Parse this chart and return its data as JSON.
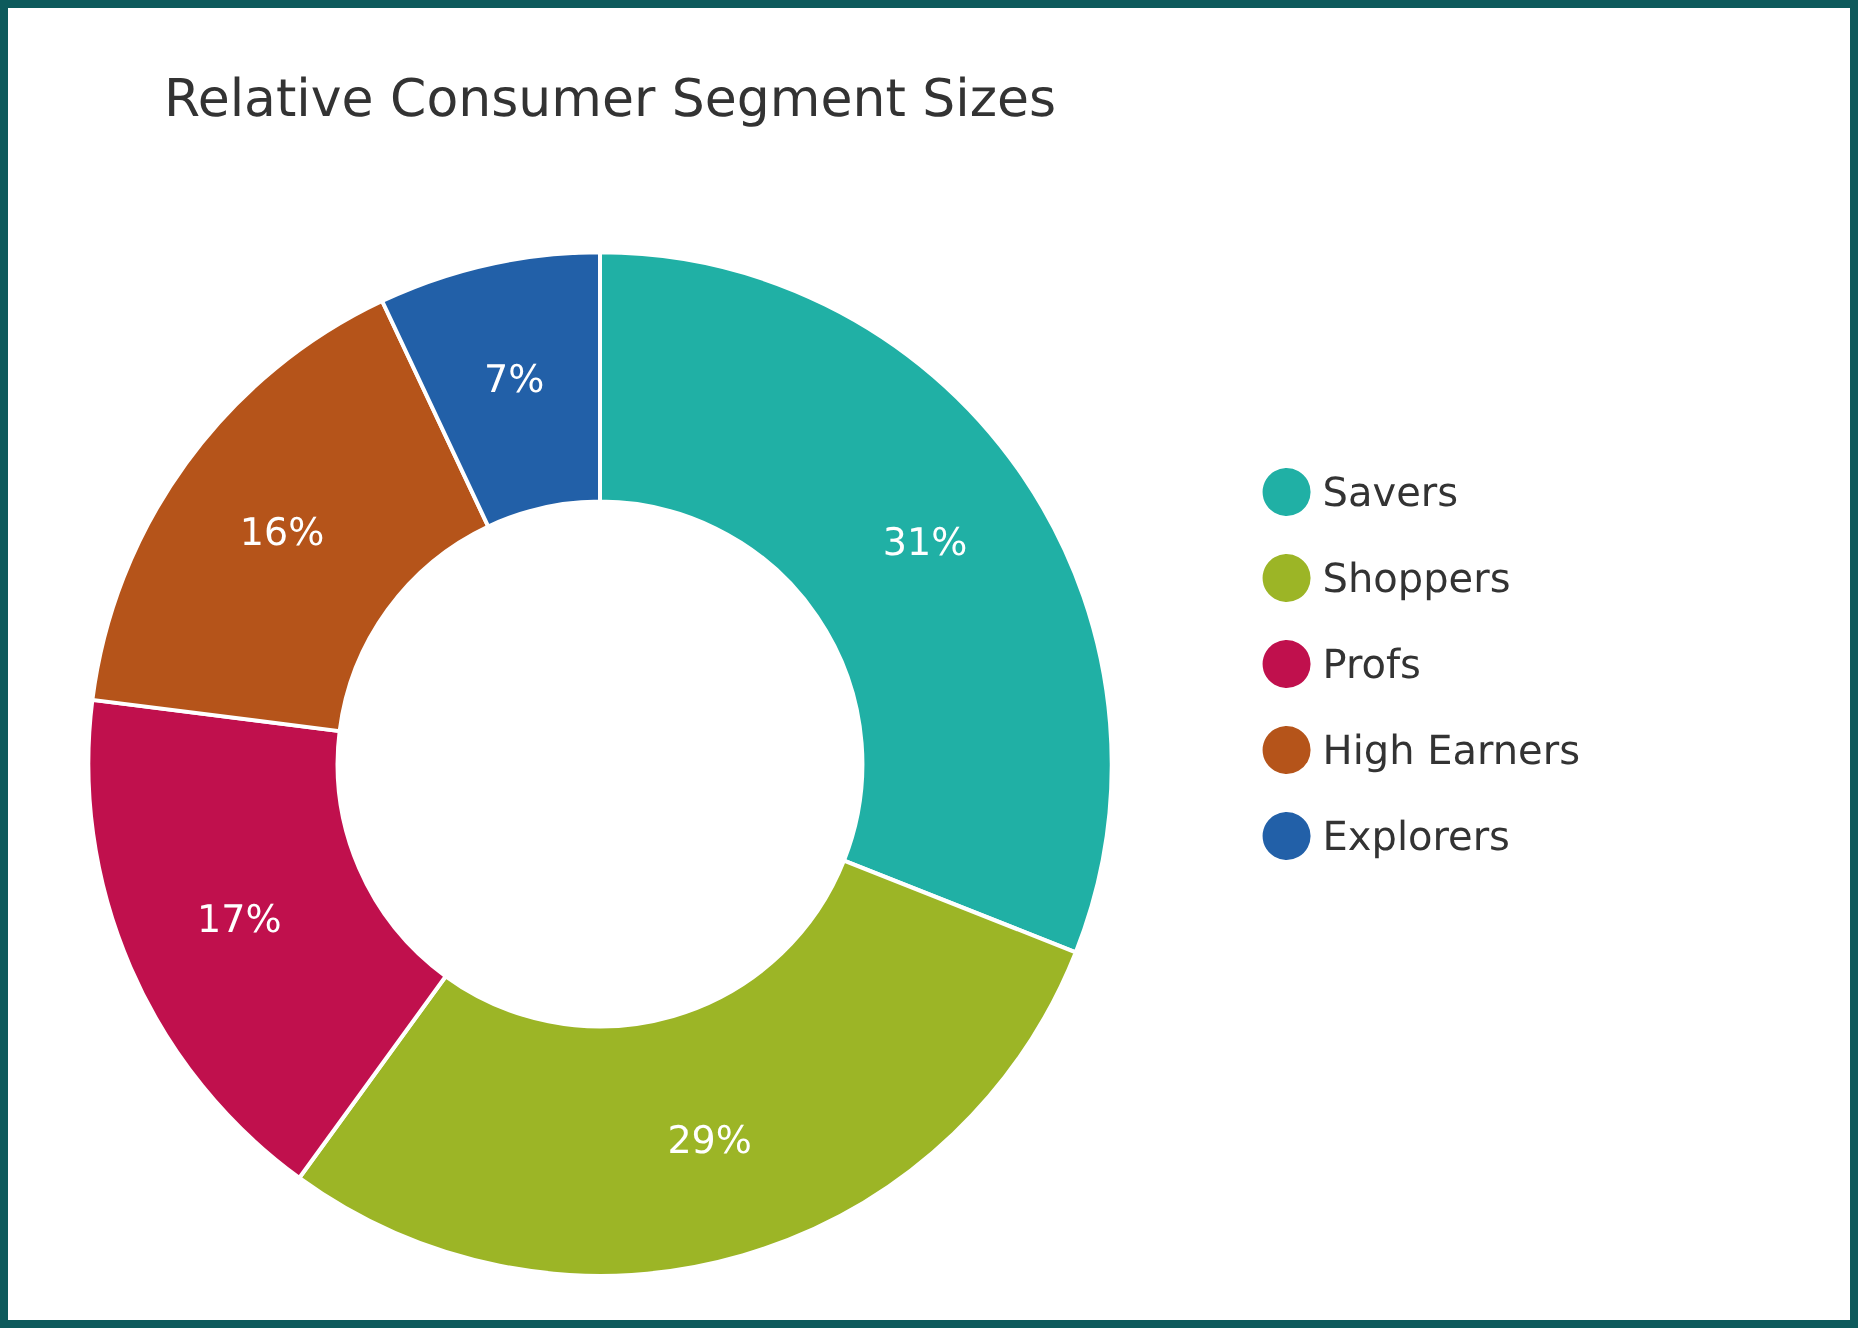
{
  "chart_data": {
    "type": "donut",
    "title": "Relative Consumer Segment Sizes",
    "categories": [
      "Savers",
      "Shoppers",
      "Profs",
      "High Earners",
      "Explorers"
    ],
    "values": [
      31,
      29,
      17,
      16,
      7
    ],
    "colors": [
      "#20b0a5",
      "#9cb526",
      "#c0104d",
      "#b5541a",
      "#2260a8"
    ],
    "value_labels": [
      "31%",
      "29%",
      "17%",
      "16%",
      "7%"
    ],
    "legend": "right"
  }
}
